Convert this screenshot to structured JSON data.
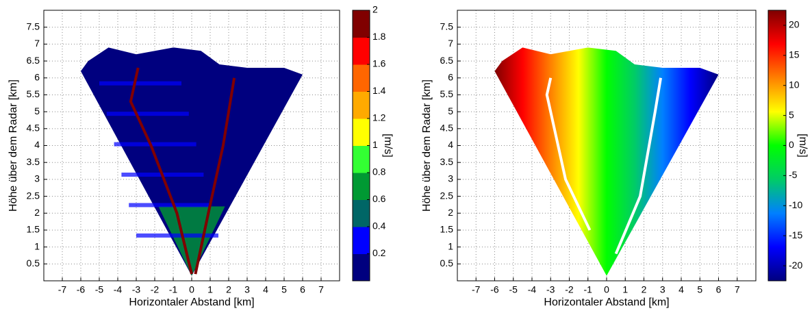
{
  "chart_data": [
    {
      "type": "heatmap",
      "xlabel": "Horizontaler Abstand [km]",
      "ylabel": "Höhe über dem Radar [km]",
      "xlim": [
        -8,
        8
      ],
      "ylim": [
        0,
        8
      ],
      "xticks": [
        -7,
        -6,
        -5,
        -4,
        -3,
        -2,
        -1,
        0,
        1,
        2,
        3,
        4,
        5,
        6,
        7
      ],
      "yticks": [
        0.5,
        1,
        1.5,
        2,
        2.5,
        3,
        3.5,
        4,
        4.5,
        5,
        5.5,
        6,
        6.5,
        7,
        7.5
      ],
      "grid": true,
      "colorbar": {
        "label": "[m/s]",
        "clim": [
          0,
          2
        ],
        "ticks": [
          0.2,
          0.4,
          0.6,
          0.8,
          1,
          1.2,
          1.4,
          1.6,
          1.8,
          2
        ],
        "colors": [
          "#00007f",
          "#0000ff",
          "#006666",
          "#009933",
          "#33ff33",
          "#ffff00",
          "#ffaa00",
          "#ff6600",
          "#ff0000",
          "#800000"
        ],
        "discrete": true
      }
    },
    {
      "type": "heatmap",
      "xlabel": "Horizontaler Abstand [km]",
      "ylabel": "Höhe über dem Radar [km]",
      "xlim": [
        -8,
        8
      ],
      "ylim": [
        0,
        8
      ],
      "xticks": [
        -7,
        -6,
        -5,
        -4,
        -3,
        -2,
        -1,
        0,
        1,
        2,
        3,
        4,
        5,
        6,
        7
      ],
      "yticks": [
        0.5,
        1,
        1.5,
        2,
        2.5,
        3,
        3.5,
        4,
        4.5,
        5,
        5.5,
        6,
        6.5,
        7,
        7.5
      ],
      "grid": true,
      "colorbar": {
        "label": "[m/s]",
        "clim": [
          -22.5,
          22.5
        ],
        "ticks": [
          -20,
          -15,
          -10,
          -5,
          0,
          5,
          10,
          15,
          20
        ],
        "colors": [
          "#00007f",
          "#0000ff",
          "#0080ff",
          "#00cc66",
          "#00ff00",
          "#ffff00",
          "#ff8000",
          "#ff0000",
          "#7f0000"
        ],
        "discrete": false
      }
    }
  ]
}
